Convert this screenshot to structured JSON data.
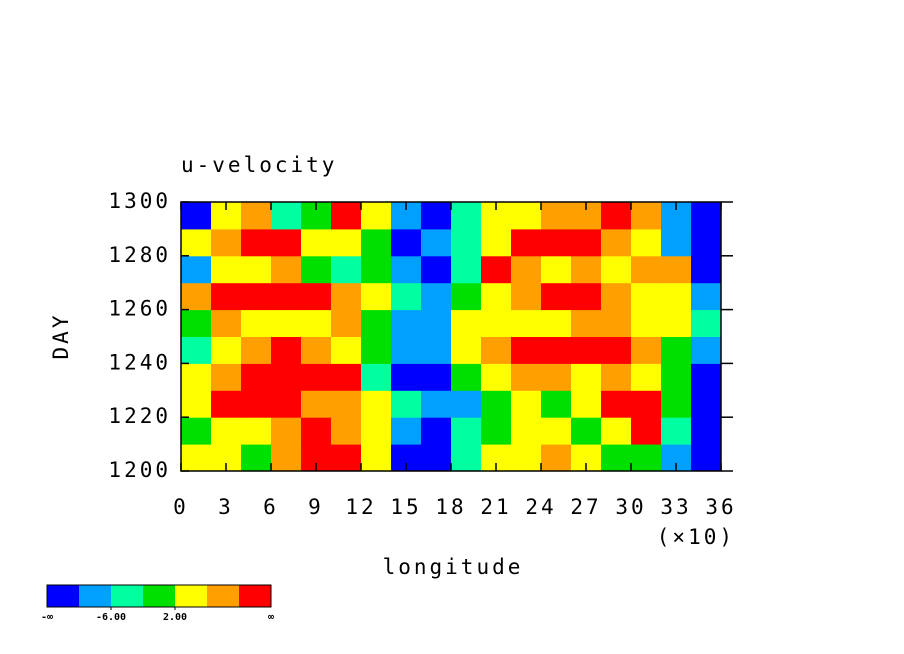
{
  "chart_data": {
    "type": "heatmap",
    "title": "u-velocity",
    "x_label": "longitude",
    "y_label": "DAY",
    "x_multiplier_label": "(×10)",
    "xlim": [
      0,
      36
    ],
    "xticks": [
      0,
      3,
      6,
      9,
      12,
      15,
      18,
      21,
      24,
      27,
      30,
      33,
      36
    ],
    "ylim": [
      1200,
      1300
    ],
    "yticks": [
      1200,
      1220,
      1240,
      1260,
      1280,
      1300
    ],
    "colors": [
      "#0000ff",
      "#00a0ff",
      "#00ffa0",
      "#00e000",
      "#ffff00",
      "#ffa000",
      "#ff0000"
    ],
    "levels": [
      -10,
      -6,
      -2,
      2,
      6,
      10
    ],
    "colorbar_ticks": [
      {
        "value": -6,
        "label": "-6.00"
      },
      {
        "value": 2,
        "label": "2.00"
      }
    ],
    "colorbar_ends": [
      "-∞",
      "∞"
    ],
    "z": [
      [
        2,
        4,
        -1,
        8,
        12,
        12,
        4,
        -12,
        -12,
        -4,
        2,
        4,
        6,
        3,
        0,
        1,
        -8,
        -12
      ],
      [
        0,
        3,
        5,
        6,
        12,
        8,
        2,
        -8,
        -12,
        -6,
        0,
        2,
        4,
        1,
        5,
        11,
        -4,
        -12
      ],
      [
        4,
        10,
        12,
        12,
        8,
        6,
        2,
        -6,
        -10,
        -8,
        -2,
        2,
        0,
        4,
        12,
        12,
        0,
        -12
      ],
      [
        2,
        8,
        10,
        12,
        12,
        12,
        -4,
        -12,
        -12,
        0,
        4,
        6,
        8,
        4,
        8,
        4,
        -2,
        -12
      ],
      [
        -4,
        4,
        6,
        10,
        6,
        3,
        -2,
        -10,
        -8,
        2,
        8,
        12,
        12,
        12,
        10,
        6,
        0,
        -8
      ],
      [
        0,
        6,
        4,
        2,
        4,
        6,
        0,
        -8,
        -10,
        2,
        4,
        2,
        4,
        6,
        8,
        2,
        4,
        -4
      ],
      [
        6,
        12,
        12,
        10,
        12,
        6,
        2,
        -6,
        -8,
        -2,
        4,
        6,
        10,
        12,
        6,
        4,
        2,
        -10
      ],
      [
        -8,
        4,
        2,
        8,
        0,
        -4,
        0,
        -10,
        -12,
        -4,
        10,
        8,
        4,
        6,
        2,
        8,
        6,
        -12
      ],
      [
        2,
        6,
        12,
        10,
        4,
        4,
        -2,
        -12,
        -10,
        -6,
        4,
        10,
        12,
        12,
        6,
        2,
        -8,
        -12
      ],
      [
        -12,
        2,
        6,
        -4,
        0,
        12,
        4,
        -8,
        -12,
        -6,
        2,
        4,
        6,
        8,
        12,
        6,
        -10,
        -12
      ]
    ]
  }
}
